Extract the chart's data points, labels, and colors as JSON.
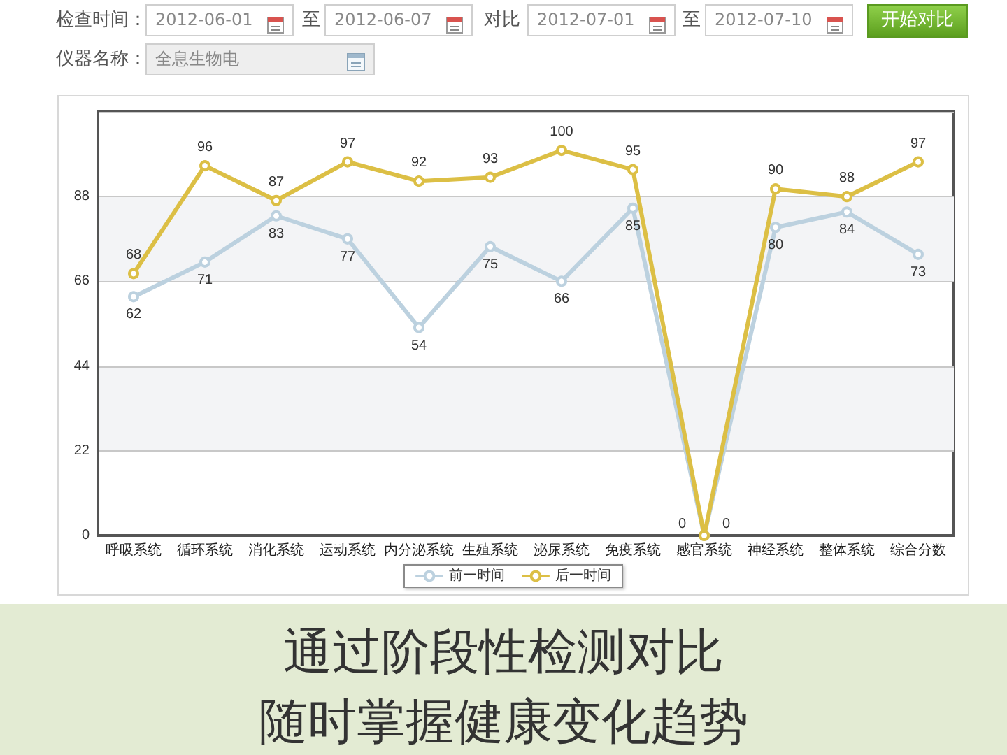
{
  "chart_data": {
    "type": "line",
    "categories": [
      "呼吸系统",
      "循环系统",
      "消化系统",
      "运动系统",
      "内分泌系统",
      "生殖系统",
      "泌尿系统",
      "免疫系统",
      "感官系统",
      "神经系统",
      "整体系统",
      "综合分数"
    ],
    "series": [
      {
        "name": "前一时间",
        "color": "#bcd1df",
        "values": [
          62,
          71,
          83,
          77,
          54,
          75,
          66,
          85,
          0,
          80,
          84,
          73
        ]
      },
      {
        "name": "后一时间",
        "color": "#dcbf45",
        "values": [
          68,
          96,
          87,
          97,
          92,
          93,
          100,
          95,
          0,
          90,
          88,
          97
        ]
      }
    ],
    "ylim": [
      0,
      110
    ],
    "yticks": [
      0,
      22,
      44,
      66,
      88,
      {
        "value": 110,
        "label": null
      }
    ],
    "grid": "y",
    "legend": "bottom",
    "marker": "circle",
    "data_labels": true,
    "annotations": [
      "检查时间：",
      "2012-06-01",
      "至",
      "2012-06-07",
      "对比",
      "2012-07-01",
      "至",
      "2012-07-10",
      "开始对比",
      "仪器名称：",
      "全息生物电",
      "通过阶段性检测对比",
      "随时掌握健康变化趋势"
    ]
  }
}
